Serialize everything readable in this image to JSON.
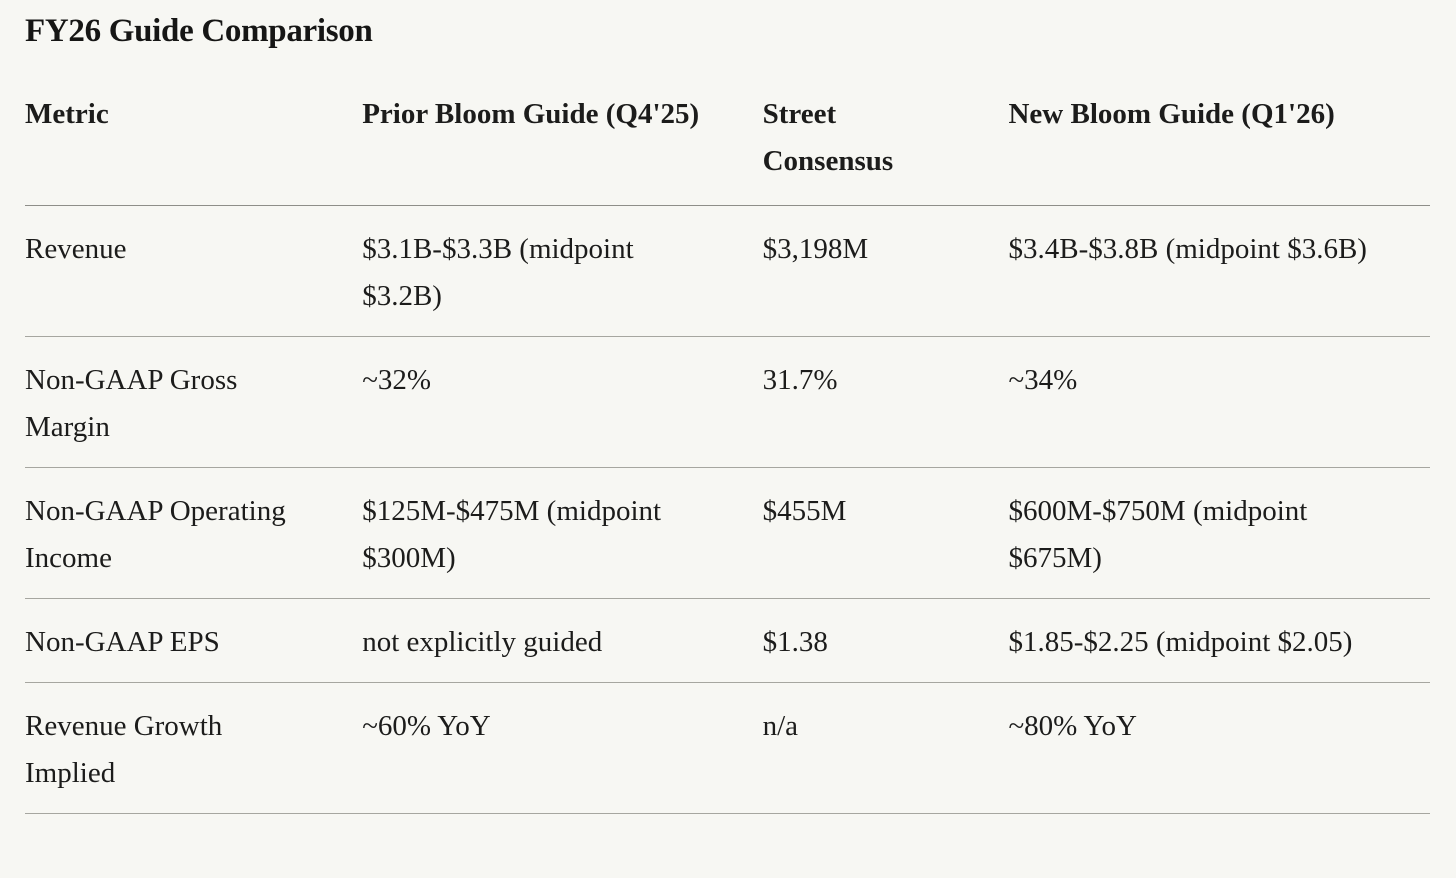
{
  "title": "FY26 Guide Comparison",
  "colors": {
    "background": "#f7f7f3",
    "text": "#1c1c1b",
    "header_divider": "#8e8e89",
    "row_divider": "#a6a6a0"
  },
  "table": {
    "columns": [
      "Metric",
      "Prior Bloom Guide (Q4'25)",
      "Street Consensus",
      "New Bloom Guide (Q1'26)"
    ],
    "rows": [
      [
        "Revenue",
        "$3.1B-$3.3B (midpoint $3.2B)",
        "$3,198M",
        "$3.4B-$3.8B (midpoint $3.6B)"
      ],
      [
        "Non-GAAP Gross Margin",
        "~32%",
        "31.7%",
        "~34%"
      ],
      [
        "Non-GAAP Operating Income",
        "$125M-$475M (midpoint $300M)",
        "$455M",
        "$600M-$750M (midpoint $675M)"
      ],
      [
        "Non-GAAP EPS",
        "not explicitly guided",
        "$1.38",
        "$1.85-$2.25 (midpoint $2.05)"
      ],
      [
        "Revenue Growth Implied",
        "~60% YoY",
        "n/a",
        "~80% YoY"
      ]
    ]
  },
  "chart_data": {
    "type": "table",
    "title": "FY26 Guide Comparison",
    "columns": [
      "Metric",
      "Prior Bloom Guide (Q4'25)",
      "Street Consensus",
      "New Bloom Guide (Q1'26)"
    ],
    "rows": [
      [
        "Revenue",
        "$3.1B-$3.3B (midpoint $3.2B)",
        "$3,198M",
        "$3.4B-$3.8B (midpoint $3.6B)"
      ],
      [
        "Non-GAAP Gross Margin",
        "~32%",
        "31.7%",
        "~34%"
      ],
      [
        "Non-GAAP Operating Income",
        "$125M-$475M (midpoint $300M)",
        "$455M",
        "$600M-$750M (midpoint $675M)"
      ],
      [
        "Non-GAAP EPS",
        "not explicitly guided",
        "$1.38",
        "$1.85-$2.25 (midpoint $2.05)"
      ],
      [
        "Revenue Growth Implied",
        "~60% YoY",
        "n/a",
        "~80% YoY"
      ]
    ]
  }
}
